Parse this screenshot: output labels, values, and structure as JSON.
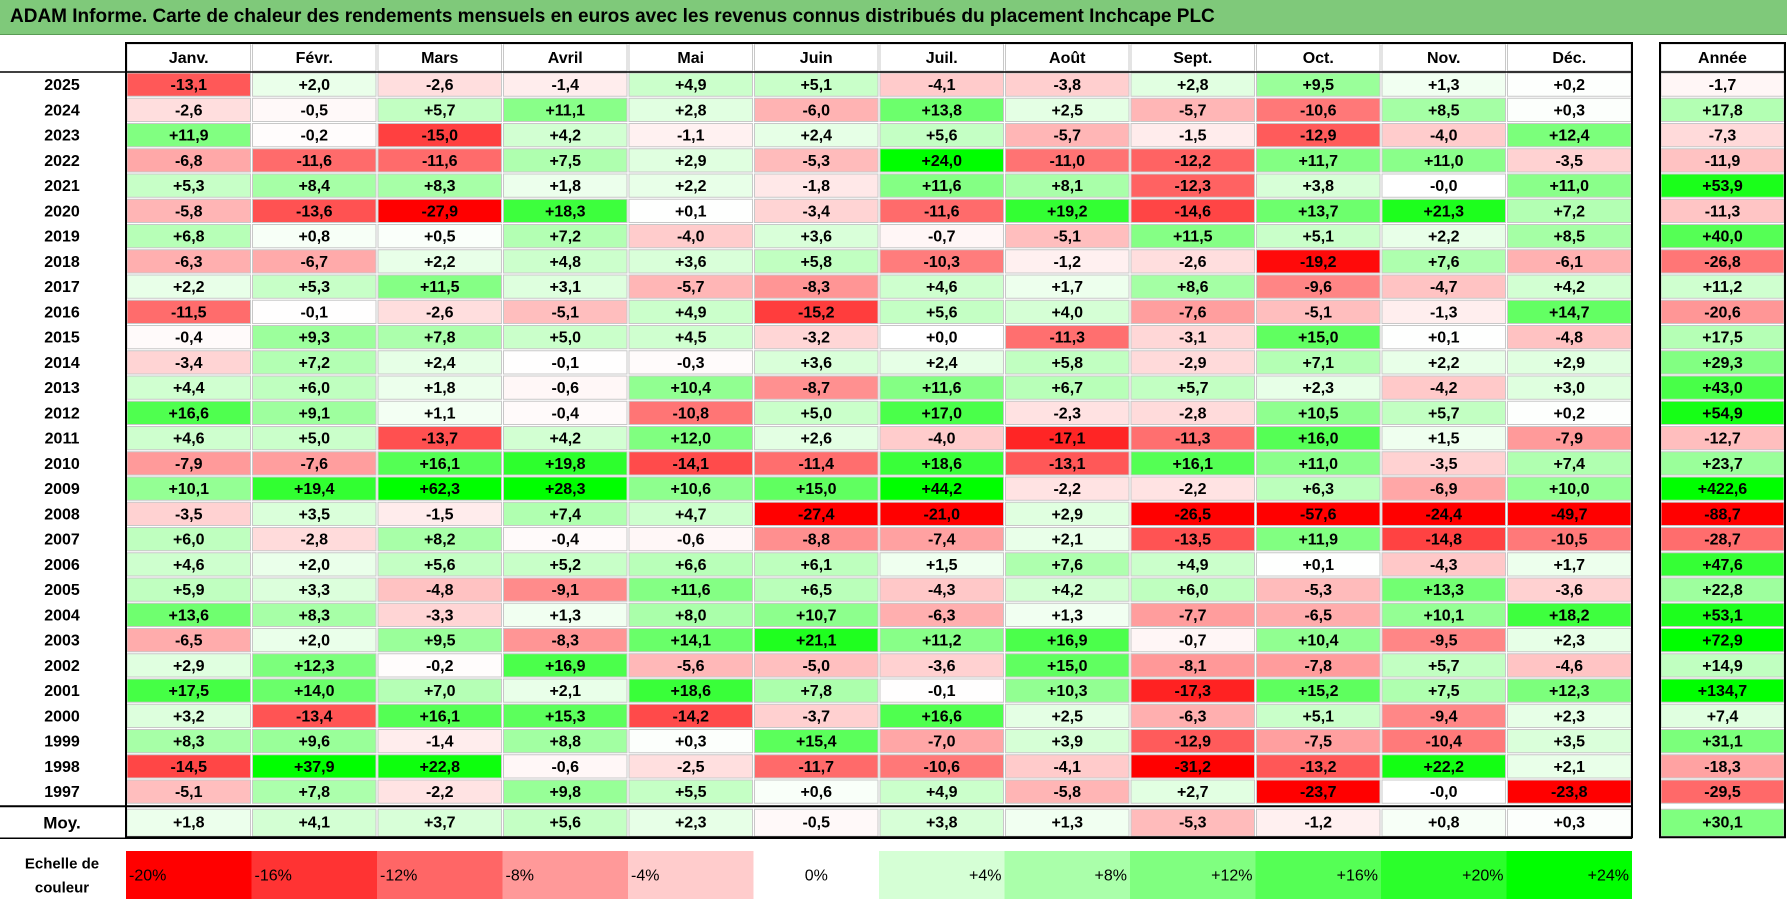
{
  "title": "ADAM Informe. Carte de chaleur des rendements mensuels en euros avec les revenus connus distribués du placement Inchcape PLC",
  "chart_data": {
    "type": "heatmap",
    "title": "ADAM Informe. Carte de chaleur des rendements mensuels en euros avec les revenus connus distribués du placement Inchcape PLC",
    "months": [
      "Janv.",
      "Févr.",
      "Mars",
      "Avril",
      "Mai",
      "Juin",
      "Juil.",
      "Août",
      "Sept.",
      "Oct.",
      "Nov.",
      "Déc."
    ],
    "year_header": "Année",
    "rows": [
      {
        "label": "2025",
        "values": [
          "-13,1",
          "+2,0",
          "-2,6",
          "-1,4",
          "+4,9",
          "+5,1",
          "-4,1",
          "-3,8",
          "+2,8",
          "+9,5",
          "+1,3",
          "+0,2"
        ],
        "year": "-1,7"
      },
      {
        "label": "2024",
        "values": [
          "-2,6",
          "-0,5",
          "+5,7",
          "+11,1",
          "+2,8",
          "-6,0",
          "+13,8",
          "+2,5",
          "-5,7",
          "-10,6",
          "+8,5",
          "+0,3"
        ],
        "year": "+17,8"
      },
      {
        "label": "2023",
        "values": [
          "+11,9",
          "-0,2",
          "-15,0",
          "+4,2",
          "-1,1",
          "+2,4",
          "+5,6",
          "-5,7",
          "-1,5",
          "-12,9",
          "-4,0",
          "+12,4"
        ],
        "year": "-7,3"
      },
      {
        "label": "2022",
        "values": [
          "-6,8",
          "-11,6",
          "-11,6",
          "+7,5",
          "+2,9",
          "-5,3",
          "+24,0",
          "-11,0",
          "-12,2",
          "+11,7",
          "+11,0",
          "-3,5"
        ],
        "year": "-11,9"
      },
      {
        "label": "2021",
        "values": [
          "+5,3",
          "+8,4",
          "+8,3",
          "+1,8",
          "+2,2",
          "-1,8",
          "+11,6",
          "+8,1",
          "-12,3",
          "+3,8",
          "-0,0",
          "+11,0"
        ],
        "year": "+53,9"
      },
      {
        "label": "2020",
        "values": [
          "-5,8",
          "-13,6",
          "-27,9",
          "+18,3",
          "+0,1",
          "-3,4",
          "-11,6",
          "+19,2",
          "-14,6",
          "+13,7",
          "+21,3",
          "+7,2"
        ],
        "year": "-11,3"
      },
      {
        "label": "2019",
        "values": [
          "+6,8",
          "+0,8",
          "+0,5",
          "+7,2",
          "-4,0",
          "+3,6",
          "-0,7",
          "-5,1",
          "+11,5",
          "+5,1",
          "+2,2",
          "+8,5"
        ],
        "year": "+40,0"
      },
      {
        "label": "2018",
        "values": [
          "-6,3",
          "-6,7",
          "+2,2",
          "+4,8",
          "+3,6",
          "+5,8",
          "-10,3",
          "-1,2",
          "-2,6",
          "-19,2",
          "+7,6",
          "-6,1"
        ],
        "year": "-26,8"
      },
      {
        "label": "2017",
        "values": [
          "+2,2",
          "+5,3",
          "+11,5",
          "+3,1",
          "-5,7",
          "-8,3",
          "+4,6",
          "+1,7",
          "+8,6",
          "-9,6",
          "-4,7",
          "+4,2"
        ],
        "year": "+11,2"
      },
      {
        "label": "2016",
        "values": [
          "-11,5",
          "-0,1",
          "-2,6",
          "-5,1",
          "+4,9",
          "-15,2",
          "+5,6",
          "+4,0",
          "-7,6",
          "-5,1",
          "-1,3",
          "+14,7"
        ],
        "year": "-20,6"
      },
      {
        "label": "2015",
        "values": [
          "-0,4",
          "+9,3",
          "+7,8",
          "+5,0",
          "+4,5",
          "-3,2",
          "+0,0",
          "-11,3",
          "-3,1",
          "+15,0",
          "+0,1",
          "-4,8"
        ],
        "year": "+17,5"
      },
      {
        "label": "2014",
        "values": [
          "-3,4",
          "+7,2",
          "+2,4",
          "-0,1",
          "-0,3",
          "+3,6",
          "+2,4",
          "+5,8",
          "-2,9",
          "+7,1",
          "+2,2",
          "+2,9"
        ],
        "year": "+29,3"
      },
      {
        "label": "2013",
        "values": [
          "+4,4",
          "+6,0",
          "+1,8",
          "-0,6",
          "+10,4",
          "-8,7",
          "+11,6",
          "+6,7",
          "+5,7",
          "+2,3",
          "-4,2",
          "+3,0"
        ],
        "year": "+43,0"
      },
      {
        "label": "2012",
        "values": [
          "+16,6",
          "+9,1",
          "+1,1",
          "-0,4",
          "-10,8",
          "+5,0",
          "+17,0",
          "-2,3",
          "-2,8",
          "+10,5",
          "+5,7",
          "+0,2"
        ],
        "year": "+54,9"
      },
      {
        "label": "2011",
        "values": [
          "+4,6",
          "+5,0",
          "-13,7",
          "+4,2",
          "+12,0",
          "+2,6",
          "-4,0",
          "-17,1",
          "-11,3",
          "+16,0",
          "+1,5",
          "-7,9"
        ],
        "year": "-12,7"
      },
      {
        "label": "2010",
        "values": [
          "-7,9",
          "-7,6",
          "+16,1",
          "+19,8",
          "-14,1",
          "-11,4",
          "+18,6",
          "-13,1",
          "+16,1",
          "+11,0",
          "-3,5",
          "+7,4"
        ],
        "year": "+23,7"
      },
      {
        "label": "2009",
        "values": [
          "+10,1",
          "+19,4",
          "+62,3",
          "+28,3",
          "+10,6",
          "+15,0",
          "+44,2",
          "-2,2",
          "-2,2",
          "+6,3",
          "-6,9",
          "+10,0"
        ],
        "year": "+422,6"
      },
      {
        "label": "2008",
        "values": [
          "-3,5",
          "+3,5",
          "-1,5",
          "+7,4",
          "+4,7",
          "-27,4",
          "-21,0",
          "+2,9",
          "-26,5",
          "-57,6",
          "-24,4",
          "-49,7"
        ],
        "year": "-88,7"
      },
      {
        "label": "2007",
        "values": [
          "+6,0",
          "-2,8",
          "+8,2",
          "-0,4",
          "-0,6",
          "-8,8",
          "-7,4",
          "+2,1",
          "-13,5",
          "+11,9",
          "-14,8",
          "-10,5"
        ],
        "year": "-28,7"
      },
      {
        "label": "2006",
        "values": [
          "+4,6",
          "+2,0",
          "+5,6",
          "+5,2",
          "+6,6",
          "+6,1",
          "+1,5",
          "+7,6",
          "+4,9",
          "+0,1",
          "-4,3",
          "+1,7"
        ],
        "year": "+47,6"
      },
      {
        "label": "2005",
        "values": [
          "+5,9",
          "+3,3",
          "-4,8",
          "-9,1",
          "+11,6",
          "+6,5",
          "-4,3",
          "+4,2",
          "+6,0",
          "-5,3",
          "+13,3",
          "-3,6"
        ],
        "year": "+22,8"
      },
      {
        "label": "2004",
        "values": [
          "+13,6",
          "+8,3",
          "-3,3",
          "+1,3",
          "+8,0",
          "+10,7",
          "-6,3",
          "+1,3",
          "-7,7",
          "-6,5",
          "+10,1",
          "+18,2"
        ],
        "year": "+53,1"
      },
      {
        "label": "2003",
        "values": [
          "-6,5",
          "+2,0",
          "+9,5",
          "-8,3",
          "+14,1",
          "+21,1",
          "+11,2",
          "+16,9",
          "-0,7",
          "+10,4",
          "-9,5",
          "+2,3"
        ],
        "year": "+72,9"
      },
      {
        "label": "2002",
        "values": [
          "+2,9",
          "+12,3",
          "-0,2",
          "+16,9",
          "-5,6",
          "-5,0",
          "-3,6",
          "+15,0",
          "-8,1",
          "-7,8",
          "+5,7",
          "-4,6"
        ],
        "year": "+14,9"
      },
      {
        "label": "2001",
        "values": [
          "+17,5",
          "+14,0",
          "+7,0",
          "+2,1",
          "+18,6",
          "+7,8",
          "-0,1",
          "+10,3",
          "-17,3",
          "+15,2",
          "+7,5",
          "+12,3"
        ],
        "year": "+134,7"
      },
      {
        "label": "2000",
        "values": [
          "+3,2",
          "-13,4",
          "+16,1",
          "+15,3",
          "-14,2",
          "-3,7",
          "+16,6",
          "+2,5",
          "-6,3",
          "+5,1",
          "-9,4",
          "+2,3"
        ],
        "year": "+7,4"
      },
      {
        "label": "1999",
        "values": [
          "+8,3",
          "+9,6",
          "-1,4",
          "+8,8",
          "+0,3",
          "+15,4",
          "-7,0",
          "+3,9",
          "-12,9",
          "-7,5",
          "-10,4",
          "+3,5"
        ],
        "year": "+31,1"
      },
      {
        "label": "1998",
        "values": [
          "-14,5",
          "+37,9",
          "+22,8",
          "-0,6",
          "-2,5",
          "-11,7",
          "-10,6",
          "-4,1",
          "-31,2",
          "-13,2",
          "+22,2",
          "+2,1"
        ],
        "year": "-18,3"
      },
      {
        "label": "1997",
        "values": [
          "-5,1",
          "+7,8",
          "-2,2",
          "+9,8",
          "+5,5",
          "+0,6",
          "+4,9",
          "-5,8",
          "+2,7",
          "-23,7",
          "-0,0",
          "-23,8"
        ],
        "year": "-29,5"
      }
    ],
    "average": {
      "label": "Moy.",
      "values": [
        "+1,8",
        "+4,1",
        "+3,7",
        "+5,6",
        "+2,3",
        "-0,5",
        "+3,8",
        "+1,3",
        "-5,3",
        "-1,2",
        "+0,8",
        "+0,3"
      ],
      "year": "+30,1"
    },
    "scale": {
      "label_line1": "Echelle de",
      "label_line2": "couleur",
      "stops": [
        {
          "label": "-20%",
          "value": -20,
          "color": "#ff0000"
        },
        {
          "label": "-16%",
          "value": -16,
          "color": "#ff3333"
        },
        {
          "label": "-12%",
          "value": -12,
          "color": "#ff6666"
        },
        {
          "label": "-8%",
          "value": -8,
          "color": "#ff9999"
        },
        {
          "label": "-4%",
          "value": -4,
          "color": "#ffcccc"
        },
        {
          "label": "0%",
          "value": 0,
          "color": "#ffffff"
        },
        {
          "label": "+4%",
          "value": 4,
          "color": "#d5ffd5"
        },
        {
          "label": "+8%",
          "value": 8,
          "color": "#aaffaa"
        },
        {
          "label": "+12%",
          "value": 12,
          "color": "#80ff80"
        },
        {
          "label": "+16%",
          "value": 16,
          "color": "#55ff55"
        },
        {
          "label": "+20%",
          "value": 20,
          "color": "#2bff2b"
        },
        {
          "label": "+24%",
          "value": 24,
          "color": "#00ff00"
        }
      ]
    }
  }
}
